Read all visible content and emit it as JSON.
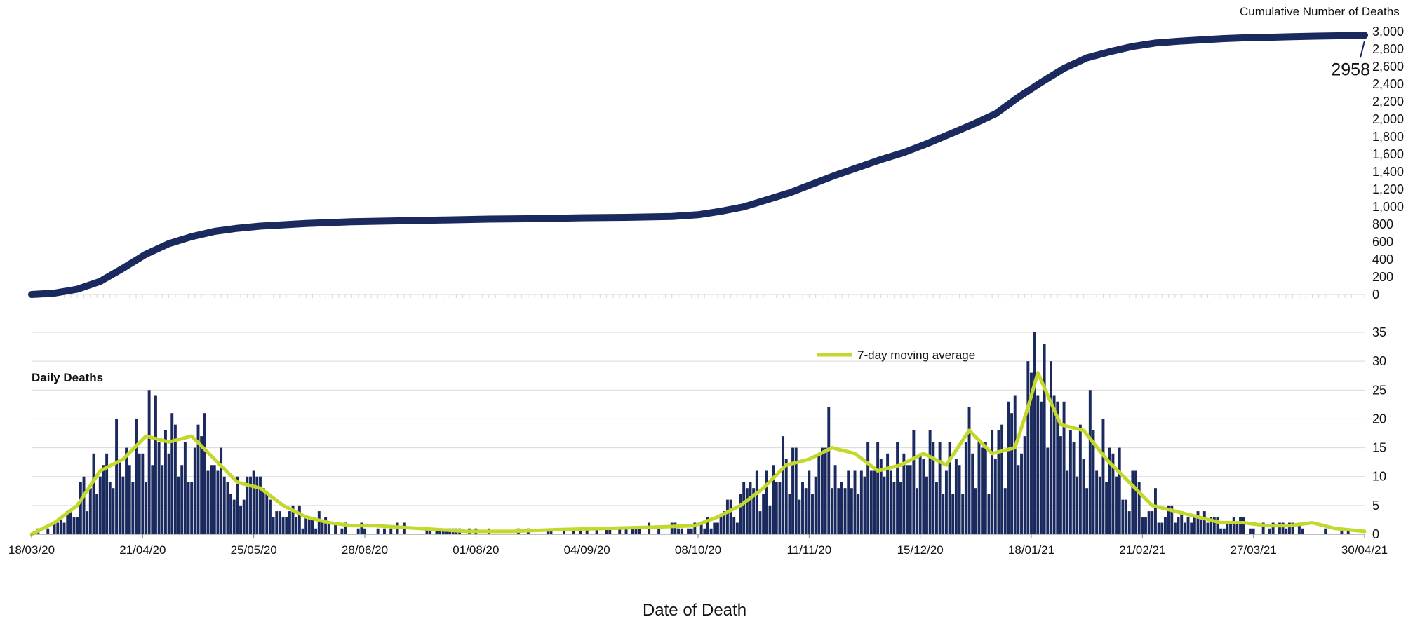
{
  "colors": {
    "navy": "#1b2a5e",
    "lime": "#c3d82b",
    "grid": "#d9d9d9",
    "text": "#111111",
    "background": "#ffffff"
  },
  "chart_data": [
    {
      "type": "line",
      "title": "",
      "series": [
        {
          "name": "",
          "dates": [
            "18/03/20",
            "25/03/20",
            "01/04/20",
            "08/04/20",
            "15/04/20",
            "22/04/20",
            "29/04/20",
            "06/05/20",
            "13/05/20",
            "20/05/20",
            "27/05/20",
            "10/06/20",
            "24/06/20",
            "08/07/20",
            "22/07/20",
            "05/08/20",
            "19/08/20",
            "02/09/20",
            "16/09/20",
            "30/09/20",
            "08/10/20",
            "15/10/20",
            "22/10/20",
            "29/10/20",
            "05/11/20",
            "12/11/20",
            "19/11/20",
            "26/11/20",
            "03/12/20",
            "10/12/20",
            "17/12/20",
            "24/12/20",
            "31/12/20",
            "07/01/21",
            "14/01/21",
            "21/01/21",
            "28/01/21",
            "04/02/21",
            "11/02/21",
            "18/02/21",
            "25/02/21",
            "04/03/21",
            "11/03/21",
            "18/03/21",
            "25/03/21",
            "01/04/21",
            "08/04/21",
            "15/04/21",
            "22/04/21",
            "30/04/21"
          ],
          "values": [
            0,
            15,
            60,
            150,
            300,
            460,
            580,
            660,
            720,
            755,
            780,
            810,
            830,
            840,
            850,
            860,
            865,
            875,
            880,
            890,
            910,
            950,
            1000,
            1080,
            1160,
            1260,
            1360,
            1450,
            1540,
            1620,
            1720,
            1830,
            1940,
            2060,
            2250,
            2420,
            2580,
            2700,
            2770,
            2830,
            2870,
            2890,
            2905,
            2920,
            2930,
            2935,
            2942,
            2948,
            2952,
            2958
          ]
        }
      ],
      "ylabel": "Cumulative Number of Deaths",
      "ylim": [
        0,
        3000
      ],
      "yticks": [
        "0",
        "200",
        "400",
        "600",
        "800",
        "1,000",
        "1,200",
        "1,400",
        "1,600",
        "1,800",
        "2,000",
        "2,200",
        "2,400",
        "2,600",
        "2,800",
        "3,000"
      ],
      "annotation": {
        "text": "2958",
        "date": "30/04/21",
        "value": 2958
      },
      "grid": false
    },
    {
      "type": "bar",
      "title": "Daily Deaths",
      "xlabel": "Date of Death",
      "ylim": [
        0,
        35
      ],
      "yticks": [
        "0",
        "5",
        "10",
        "15",
        "20",
        "25",
        "30",
        "35"
      ],
      "xticks": [
        "18/03/20",
        "21/04/20",
        "25/05/20",
        "28/06/20",
        "01/08/20",
        "04/09/20",
        "08/10/20",
        "11/11/20",
        "15/12/20",
        "18/01/21",
        "21/02/21",
        "27/03/21",
        "30/04/21"
      ],
      "grid": true,
      "legend": {
        "label": "7-day moving average",
        "position": "top-center"
      },
      "series": [
        {
          "name": "",
          "dates": [
            "18/03/20",
            "25/03/20",
            "01/04/20",
            "08/04/20",
            "15/04/20",
            "22/04/20",
            "29/04/20",
            "06/05/20",
            "13/05/20",
            "20/05/20",
            "27/05/20",
            "03/06/20",
            "10/06/20",
            "17/06/20",
            "24/06/20",
            "01/07/20",
            "15/07/20",
            "29/07/20",
            "12/08/20",
            "26/08/20",
            "09/09/20",
            "23/09/20",
            "07/10/20",
            "14/10/20",
            "21/10/20",
            "28/10/20",
            "04/11/20",
            "11/11/20",
            "18/11/20",
            "25/11/20",
            "02/12/20",
            "09/12/20",
            "16/12/20",
            "23/12/20",
            "30/12/20",
            "06/01/21",
            "13/01/21",
            "17/01/21",
            "20/01/21",
            "27/01/21",
            "03/02/21",
            "10/02/21",
            "17/02/21",
            "24/02/21",
            "03/03/21",
            "10/03/21",
            "17/03/21",
            "24/03/21",
            "31/03/21",
            "07/04/21",
            "14/04/21",
            "21/04/21",
            "30/04/21"
          ],
          "values": [
            0,
            2,
            5,
            11,
            14,
            17,
            16,
            17,
            12,
            8,
            7,
            4,
            3,
            2,
            1.5,
            1.5,
            1,
            0.5,
            0.5,
            0.8,
            1,
            1.2,
            1.5,
            3,
            5,
            9,
            12,
            13,
            15,
            13,
            11,
            12,
            14,
            12,
            18,
            14,
            16,
            21,
            27,
            20,
            18,
            13,
            9,
            5,
            4,
            3,
            2,
            2,
            1.5,
            1.5,
            1.5,
            1,
            0.5
          ]
        },
        {
          "name": "7-day moving average",
          "dates": [
            "18/03/20",
            "25/03/20",
            "01/04/20",
            "08/04/20",
            "15/04/20",
            "22/04/20",
            "29/04/20",
            "06/05/20",
            "13/05/20",
            "20/05/20",
            "27/05/20",
            "03/06/20",
            "10/06/20",
            "17/06/20",
            "24/06/20",
            "01/07/20",
            "15/07/20",
            "29/07/20",
            "12/08/20",
            "26/08/20",
            "09/09/20",
            "23/09/20",
            "07/10/20",
            "14/10/20",
            "21/10/20",
            "28/10/20",
            "04/11/20",
            "11/11/20",
            "18/11/20",
            "25/11/20",
            "02/12/20",
            "09/12/20",
            "16/12/20",
            "23/12/20",
            "30/12/20",
            "06/01/21",
            "13/01/21",
            "17/01/21",
            "20/01/21",
            "27/01/21",
            "03/02/21",
            "10/02/21",
            "17/02/21",
            "24/02/21",
            "03/03/21",
            "10/03/21",
            "17/03/21",
            "24/03/21",
            "31/03/21",
            "07/04/21",
            "14/04/21",
            "21/04/21",
            "30/04/21"
          ],
          "values": [
            0,
            2,
            5,
            11,
            13,
            17,
            16,
            17,
            13,
            9,
            8,
            5,
            3,
            2,
            1.5,
            1.5,
            1,
            0.5,
            0.5,
            0.8,
            1,
            1.2,
            1.5,
            3,
            5,
            8,
            12,
            13,
            15,
            14,
            11,
            12,
            14,
            12,
            18,
            14,
            15,
            22,
            28,
            19,
            18,
            13,
            9,
            5,
            4,
            3,
            2,
            2,
            1.5,
            1.5,
            2,
            1,
            0.5
          ]
        }
      ]
    }
  ]
}
